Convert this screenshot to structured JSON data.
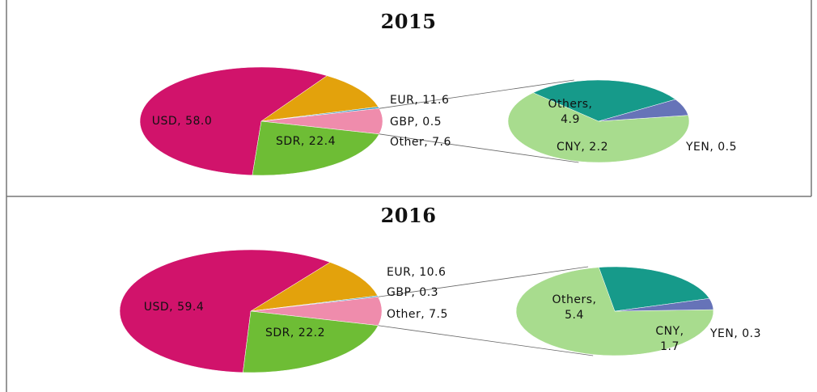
{
  "chart_data": [
    {
      "type": "pie-of-pie",
      "title": "2015",
      "values": [
        58.0,
        11.6,
        0.5,
        7.6,
        22.4
      ],
      "value_labels": [
        "USD, 58.0",
        "EUR, 11.6",
        "GBP, 0.5",
        "Other, 7.6",
        "SDR, 22.4"
      ],
      "colors": [
        "#d1136b",
        "#e3a20c",
        "#3a9bc4",
        "#ef8cac",
        "#6ebd35"
      ],
      "secondary": {
        "values": [
          4.9,
          2.2,
          0.5
        ],
        "value_labels": [
          "Others,\n4.9",
          "CNY, 2.2",
          "YEN, 0.5"
        ],
        "colors": [
          "#a8dc8e",
          "#169a8a",
          "#6673b8"
        ]
      }
    },
    {
      "type": "pie-of-pie",
      "title": "2016",
      "values": [
        59.4,
        10.6,
        0.3,
        7.5,
        22.2
      ],
      "value_labels": [
        "USD, 59.4",
        "EUR, 10.6",
        "GBP, 0.3",
        "Other, 7.5",
        "SDR, 22.2"
      ],
      "colors": [
        "#d1136b",
        "#e3a20c",
        "#3a9bc4",
        "#ef8cac",
        "#6ebd35"
      ],
      "secondary": {
        "values": [
          5.4,
          1.7,
          0.3
        ],
        "value_labels": [
          "Others,\n5.4",
          "CNY,\n1.7",
          "YEN, 0.3"
        ],
        "colors": [
          "#a8dc8e",
          "#169a8a",
          "#6673b8"
        ]
      }
    }
  ]
}
